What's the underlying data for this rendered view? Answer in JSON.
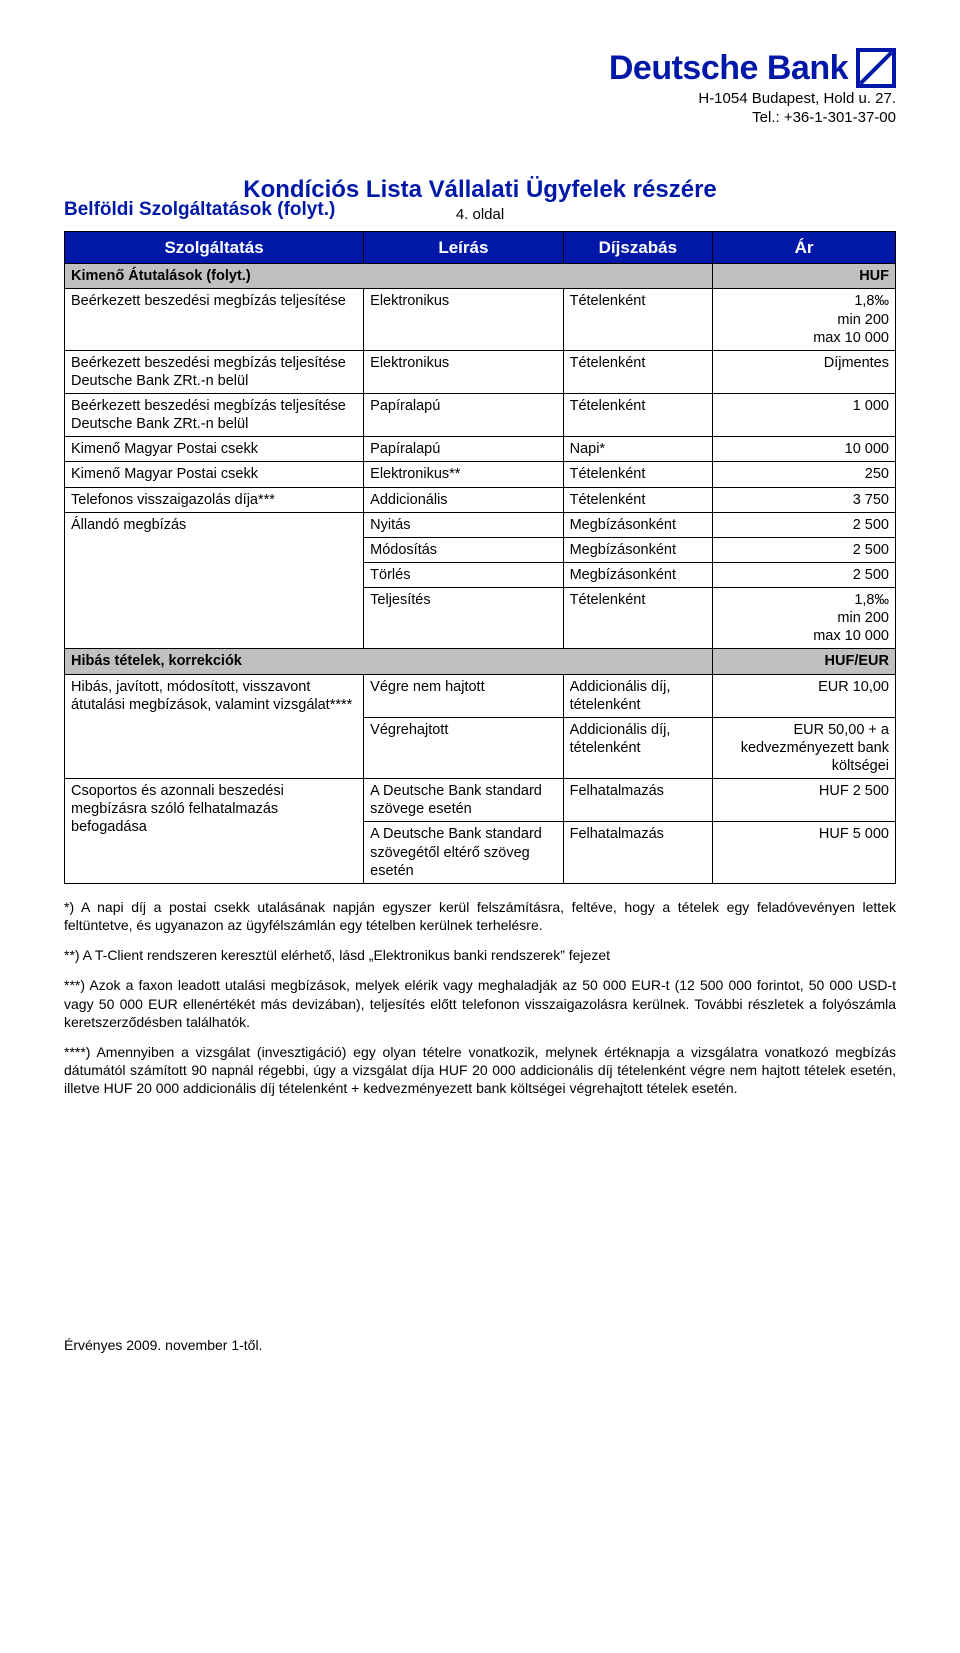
{
  "header": {
    "logo_text": "Deutsche Bank",
    "address_line1": "H-1054 Budapest, Hold u. 27.",
    "address_line2": "Tel.: +36-1-301-37-00"
  },
  "doc": {
    "title": "Kondíciós Lista Vállalati Ügyfelek részére",
    "page_label": "4. oldal",
    "section_left": "Belföldi Szolgáltatások (folyt.)"
  },
  "cols": {
    "c1": "Szolgáltatás",
    "c2": "Leírás",
    "c3": "Díjszabás",
    "c4": "Ár"
  },
  "sec1_label": "Kimenő Átutalások (folyt.)",
  "sec1_cur": "HUF",
  "rows1": [
    {
      "a": "Beérkezett beszedési megbízás teljesítése",
      "b": "Elektronikus",
      "c": "Tételenként",
      "d": "1,8‰\nmin 200\nmax 10 000"
    },
    {
      "a": "Beérkezett beszedési megbízás teljesítése Deutsche Bank ZRt.-n belül",
      "b": "Elektronikus",
      "c": "Tételenként",
      "d": "Díjmentes"
    },
    {
      "a": "Beérkezett beszedési megbízás teljesítése Deutsche Bank ZRt.-n belül",
      "b": "Papíralapú",
      "c": "Tételenként",
      "d": "1 000"
    },
    {
      "a": "Kimenő Magyar Postai csekk",
      "b": "Papíralapú",
      "c": "Napi*",
      "d": "10 000"
    },
    {
      "a": "Kimenő Magyar Postai csekk",
      "b": "Elektronikus**",
      "c": "Tételenként",
      "d": "250"
    },
    {
      "a": "Telefonos visszaigazolás díja***",
      "b": "Addicionális",
      "c": "Tételenként",
      "d": "3 750"
    }
  ],
  "standing": {
    "label": "Állandó megbízás",
    "rows": [
      {
        "b": "Nyitás",
        "c": "Megbízásonként",
        "d": "2 500"
      },
      {
        "b": "Módosítás",
        "c": "Megbízásonként",
        "d": "2 500"
      },
      {
        "b": "Törlés",
        "c": "Megbízásonként",
        "d": "2 500"
      },
      {
        "b": "Teljesítés",
        "c": "Tételenként",
        "d": "1,8‰\nmin 200\nmax 10 000"
      }
    ]
  },
  "sec2_label": "Hibás tételek, korrekciók",
  "sec2_cur": "HUF/EUR",
  "hibas": {
    "label": "Hibás, javított, módosított, visszavont átutalási megbízások, valamint vizsgálat****",
    "rows": [
      {
        "b": "Végre nem hajtott",
        "c": "Addicionális díj, tételenként",
        "d": "EUR 10,00"
      },
      {
        "b": "Végrehajtott",
        "c": "Addicionális díj, tételenként",
        "d": "EUR 50,00 + a kedvezményezett bank költségei"
      }
    ]
  },
  "csoportos": {
    "label": "Csoportos és azonnali beszedési megbízásra szóló felhatalmazás befogadása",
    "rows": [
      {
        "b": "A Deutsche Bank standard szövege esetén",
        "c": "Felhatalmazás",
        "d": "HUF 2 500"
      },
      {
        "b": "A Deutsche Bank standard szövegétől eltérő szöveg esetén",
        "c": "Felhatalmazás",
        "d": "HUF 5 000"
      }
    ]
  },
  "notes": [
    "*) A napi díj a postai csekk utalásának napján egyszer kerül felszámításra, feltéve, hogy a tételek egy feladóvevényen lettek feltüntetve, és ugyanazon az ügyfélszámlán egy tételben kerülnek terhelésre.",
    "**) A T-Client rendszeren keresztül elérhető, lásd „Elektronikus banki rendszerek” fejezet",
    "***) Azok a faxon leadott utalási megbízások, melyek elérik vagy meghaladják az 50 000 EUR-t (12 500 000 forintot, 50 000 USD-t vagy 50 000 EUR ellenértékét más devizában), teljesítés előtt telefonon visszaigazolásra kerülnek. További részletek a folyószámla keretszerződésben találhatók.",
    "****) Amennyiben a vizsgálat (invesztigáció) egy olyan tételre vonatkozik, melynek értéknapja a vizsgálatra vonatkozó megbízás dátumától számított 90 napnál régebbi, úgy a vizsgálat díja HUF 20 000 addicionális díj tételenként végre nem hajtott tételek esetén, illetve HUF 20 000 addicionális díj tételenként + kedvezményezett bank költségei végrehajtott tételek esetén."
  ],
  "footer": "Érvényes 2009. november 1-től."
}
